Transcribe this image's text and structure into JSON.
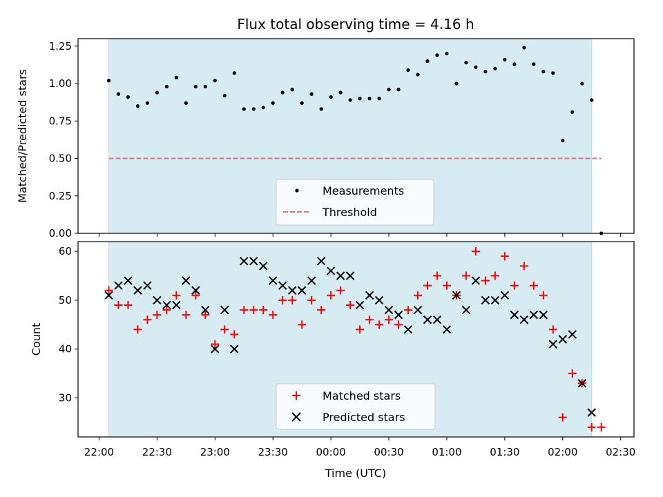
{
  "chart_data": [
    {
      "type": "scatter",
      "title": "Flux total observing time = 4.16 h",
      "ylabel": "Matched/Predicted stars",
      "xlabel": "",
      "ylim": [
        0,
        1.3
      ],
      "y_ticks": [
        "0.00",
        "0.25",
        "0.50",
        "0.75",
        "1.00",
        "1.25"
      ],
      "shaded_span_minutes": [
        5,
        255
      ],
      "legend_position": "lower center",
      "series": [
        {
          "name": "Measurements",
          "marker": "dot",
          "color": "#000000",
          "x_minutes": [
            5,
            10,
            15,
            20,
            25,
            30,
            35,
            40,
            45,
            50,
            55,
            60,
            65,
            70,
            75,
            80,
            85,
            90,
            95,
            100,
            105,
            110,
            115,
            120,
            125,
            130,
            135,
            140,
            145,
            150,
            155,
            160,
            165,
            170,
            175,
            180,
            185,
            190,
            195,
            200,
            205,
            210,
            215,
            220,
            225,
            230,
            235,
            240,
            245,
            250,
            255,
            260
          ],
          "values": [
            1.02,
            0.93,
            0.91,
            0.85,
            0.87,
            0.94,
            0.98,
            1.04,
            0.87,
            0.98,
            0.98,
            1.02,
            0.92,
            1.07,
            0.83,
            0.83,
            0.84,
            0.87,
            0.94,
            0.96,
            0.87,
            0.93,
            0.83,
            0.91,
            0.94,
            0.89,
            0.9,
            0.9,
            0.9,
            0.96,
            0.96,
            1.09,
            1.06,
            1.15,
            1.19,
            1.2,
            1.0,
            1.14,
            1.11,
            1.08,
            1.1,
            1.16,
            1.13,
            1.24,
            1.13,
            1.08,
            1.07,
            0.62,
            0.81,
            1.0,
            0.89,
            0.0
          ]
        },
        {
          "name": "Threshold",
          "style": "dashed",
          "color": "#f07070",
          "x_minutes": [
            5,
            260
          ],
          "values": [
            0.5,
            0.5
          ]
        }
      ]
    },
    {
      "type": "scatter",
      "xlabel": "Time (UTC)",
      "ylabel": "Count",
      "ylim": [
        22,
        62
      ],
      "y_ticks": [
        "30",
        "40",
        "50",
        "60"
      ],
      "x_ticks": [
        "22:00",
        "22:30",
        "23:00",
        "23:30",
        "00:00",
        "00:30",
        "01:00",
        "01:30",
        "02:00",
        "02:30"
      ],
      "x_tick_minutes": [
        0,
        30,
        60,
        90,
        120,
        150,
        180,
        210,
        240,
        270
      ],
      "shaded_span_minutes": [
        5,
        255
      ],
      "legend_position": "lower center",
      "series": [
        {
          "name": "Matched stars",
          "marker": "plus",
          "color": "#ff0000",
          "x_minutes": [
            5,
            10,
            15,
            20,
            25,
            30,
            35,
            40,
            45,
            50,
            55,
            60,
            65,
            70,
            75,
            80,
            85,
            90,
            95,
            100,
            105,
            110,
            115,
            120,
            125,
            130,
            135,
            140,
            145,
            150,
            155,
            160,
            165,
            170,
            175,
            180,
            185,
            190,
            195,
            200,
            205,
            210,
            215,
            220,
            225,
            230,
            235,
            240,
            245,
            250,
            255,
            260
          ],
          "values": [
            52,
            49,
            49,
            44,
            46,
            47,
            48,
            51,
            47,
            51,
            47,
            41,
            44,
            43,
            48,
            48,
            48,
            47,
            50,
            50,
            45,
            50,
            48,
            51,
            52,
            49,
            44,
            46,
            45,
            46,
            45,
            48,
            51,
            53,
            55,
            53,
            51,
            55,
            60,
            54,
            55,
            59,
            53,
            57,
            53,
            51,
            44,
            26,
            35,
            33,
            24,
            24
          ]
        },
        {
          "name": "Predicted stars",
          "marker": "x",
          "color": "#000000",
          "x_minutes": [
            5,
            10,
            15,
            20,
            25,
            30,
            35,
            40,
            45,
            50,
            55,
            60,
            65,
            70,
            75,
            80,
            85,
            90,
            95,
            100,
            105,
            110,
            115,
            120,
            125,
            130,
            135,
            140,
            145,
            150,
            155,
            160,
            165,
            170,
            175,
            180,
            185,
            190,
            195,
            200,
            205,
            210,
            215,
            220,
            225,
            230,
            235,
            240,
            245,
            250,
            255
          ],
          "values": [
            51,
            53,
            54,
            52,
            53,
            50,
            49,
            49,
            54,
            52,
            48,
            40,
            48,
            40,
            58,
            58,
            57,
            54,
            53,
            52,
            52,
            54,
            58,
            56,
            55,
            55,
            49,
            51,
            50,
            48,
            47,
            44,
            48,
            46,
            46,
            44,
            51,
            48,
            54,
            50,
            50,
            51,
            47,
            46,
            47,
            47,
            41,
            42,
            43,
            33,
            27
          ]
        }
      ]
    }
  ]
}
